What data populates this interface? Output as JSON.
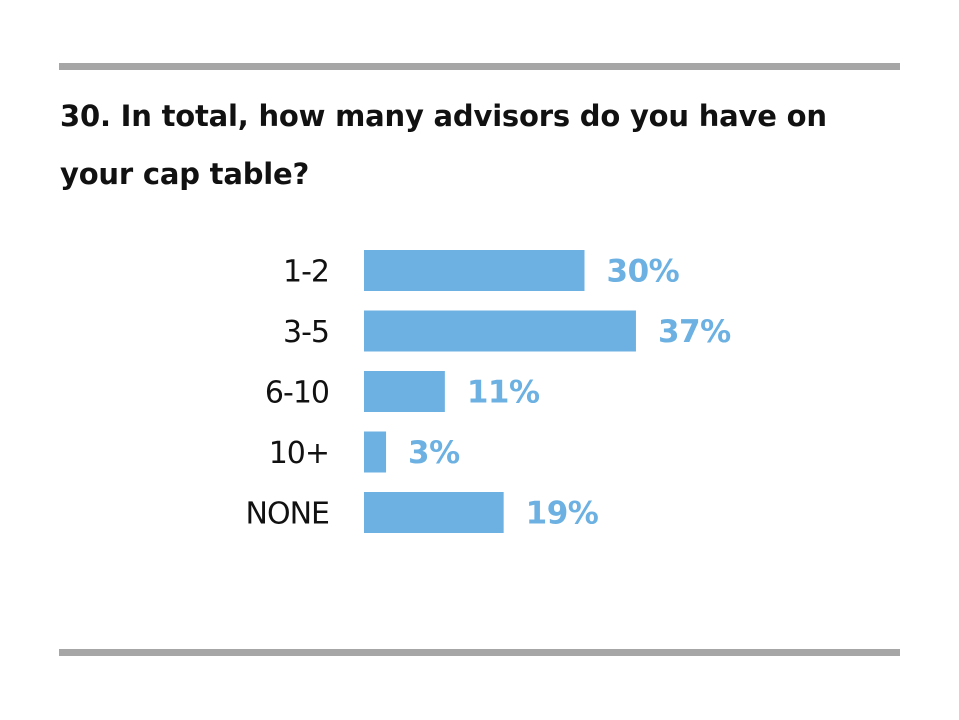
{
  "title": "30. In total, how many advisors do you have on your cap table?",
  "colors": {
    "bar": "#6cb1e2",
    "value_label": "#6cb1e2",
    "rule": "#a6a6a6"
  },
  "chart_data": {
    "type": "bar",
    "orientation": "horizontal",
    "title": "30. In total, how many advisors do you have on your cap table?",
    "categories": [
      "1-2",
      "3-5",
      "6-10",
      "10+",
      "NONE"
    ],
    "values": [
      30,
      37,
      11,
      3,
      19
    ],
    "value_labels": [
      "30%",
      "37%",
      "11%",
      "3%",
      "19%"
    ],
    "unit": "%",
    "xlabel": "",
    "ylabel": "",
    "grid": false,
    "legend": "none"
  }
}
